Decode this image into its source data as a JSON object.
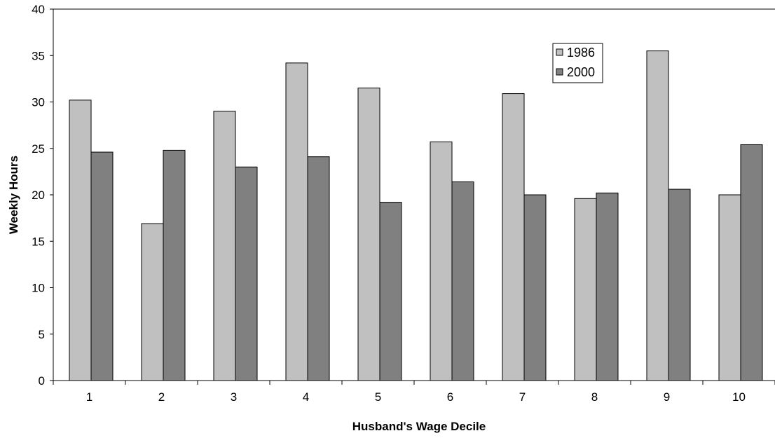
{
  "chart_data": {
    "type": "bar",
    "title": "",
    "xlabel": "Husband's Wage Decile",
    "ylabel": "Weekly Hours",
    "categories": [
      "1",
      "2",
      "3",
      "4",
      "5",
      "6",
      "7",
      "8",
      "9",
      "10"
    ],
    "series": [
      {
        "name": "1986",
        "color": "#c0c0c0",
        "values": [
          30.2,
          16.9,
          29.0,
          34.2,
          31.5,
          25.7,
          30.9,
          19.6,
          35.5,
          20.0
        ]
      },
      {
        "name": "2000",
        "color": "#808080",
        "values": [
          24.6,
          24.8,
          23.0,
          24.1,
          19.2,
          21.4,
          20.0,
          20.2,
          20.6,
          25.4
        ]
      }
    ],
    "ylim": [
      0,
      40
    ],
    "yticks": [
      0,
      5,
      10,
      15,
      20,
      25,
      30,
      35,
      40
    ],
    "grid": false,
    "legend_position": "top-right"
  }
}
